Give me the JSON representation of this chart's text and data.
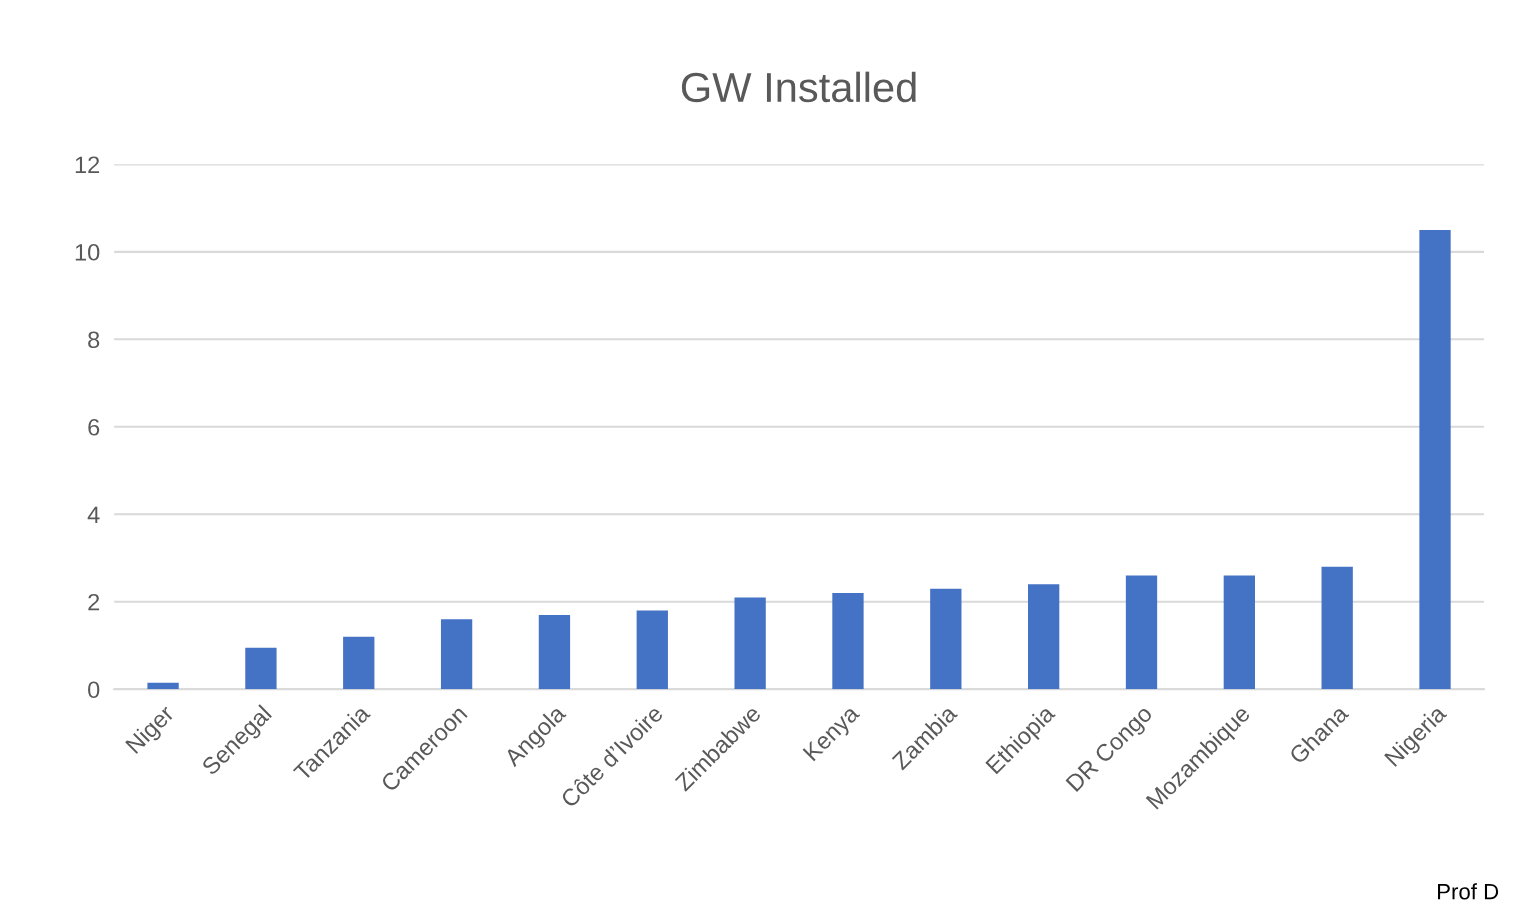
{
  "chart_data": {
    "type": "bar",
    "title": "GW Installed",
    "categories": [
      "Niger",
      "Senegal",
      "Tanzania",
      "Cameroon",
      "Angola",
      "Côte d’Ivoire",
      "Zimbabwe",
      "Kenya",
      "Zambia",
      "Ethiopia",
      "DR Congo",
      "Mozambique",
      "Ghana",
      "Nigeria"
    ],
    "values": [
      0.15,
      0.95,
      1.2,
      1.6,
      1.7,
      1.8,
      2.1,
      2.2,
      2.3,
      2.4,
      2.6,
      2.6,
      2.8,
      10.5
    ],
    "color": "#4472c4",
    "ylim": [
      0,
      12
    ],
    "yticks": [
      0,
      2,
      4,
      6,
      8,
      10,
      12
    ],
    "grid": "y",
    "annotations": [
      "Prof D"
    ]
  }
}
